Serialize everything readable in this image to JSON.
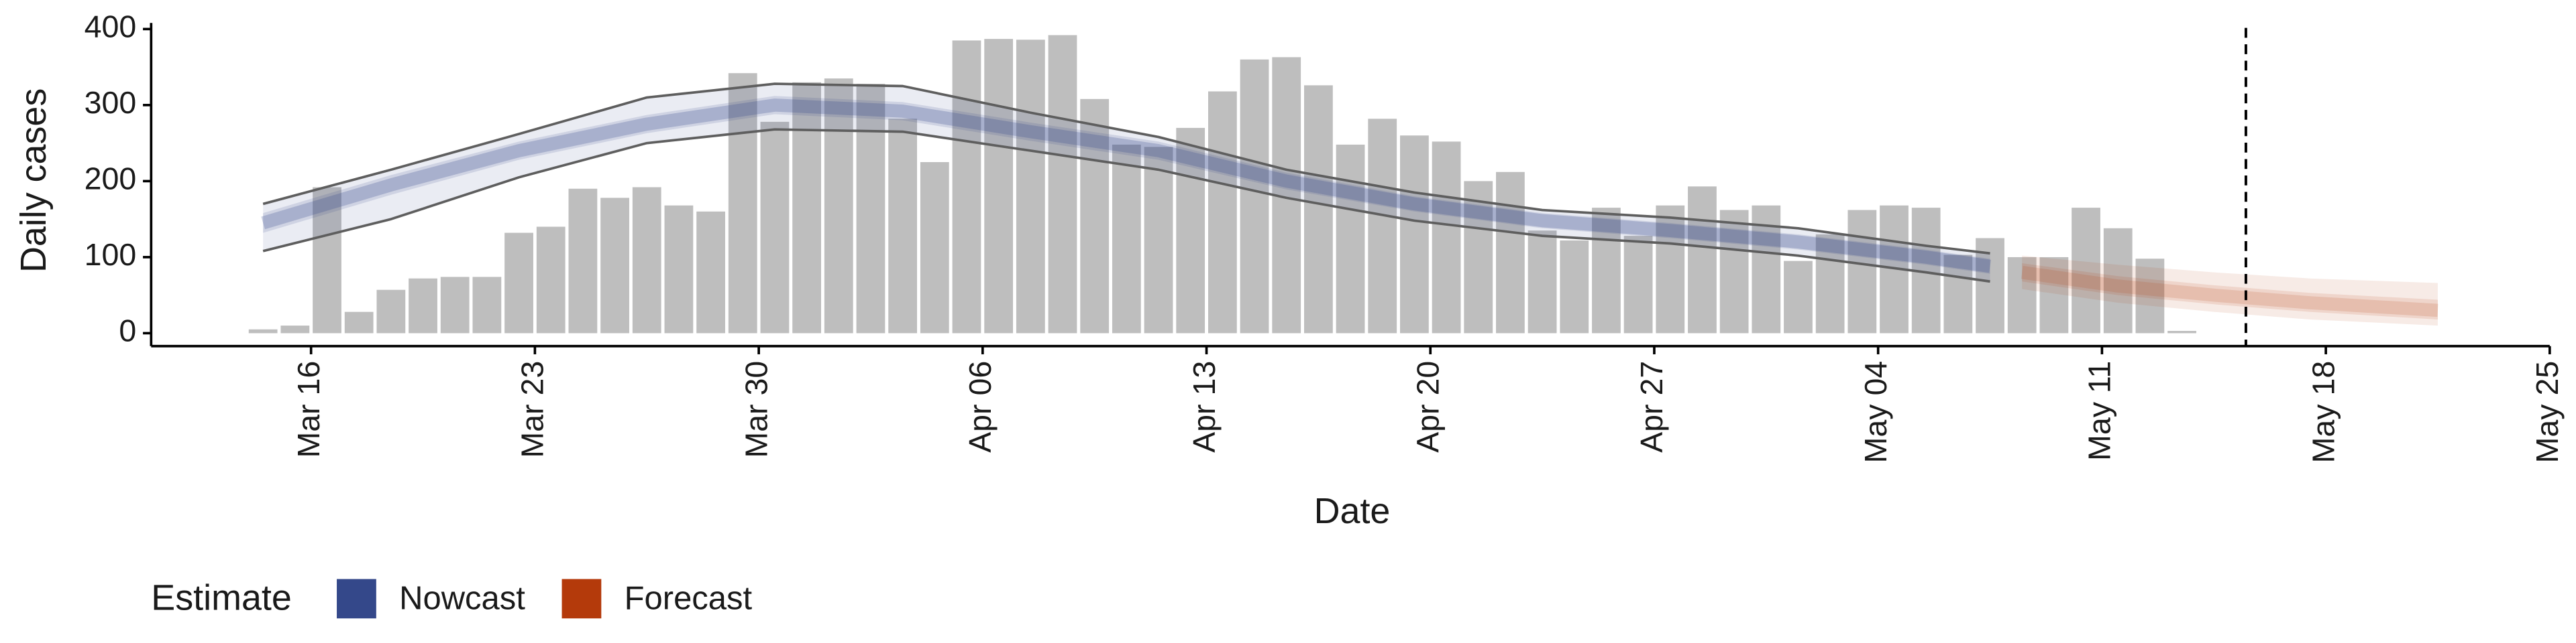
{
  "chart_data": {
    "type": "bar",
    "xlabel": "Date",
    "ylabel": "Daily cases",
    "xlim": [
      "Mar 11",
      "May 25"
    ],
    "xticks": [
      "Mar 16",
      "Mar 23",
      "Mar 30",
      "Apr 06",
      "Apr 13",
      "Apr 20",
      "Apr 27",
      "May 04",
      "May 11",
      "May 18",
      "May 25"
    ],
    "ylim": [
      -17,
      408
    ],
    "yticks": [
      0,
      100,
      200,
      300,
      400
    ],
    "color": "#bebebe",
    "categories": [
      "Mar 14",
      "Mar 15",
      "Mar 16",
      "Mar 17",
      "Mar 18",
      "Mar 19",
      "Mar 20",
      "Mar 21",
      "Mar 22",
      "Mar 23",
      "Mar 24",
      "Mar 25",
      "Mar 26",
      "Mar 27",
      "Mar 28",
      "Mar 29",
      "Mar 30",
      "Mar 31",
      "Apr 01",
      "Apr 02",
      "Apr 03",
      "Apr 04",
      "Apr 05",
      "Apr 06",
      "Apr 07",
      "Apr 08",
      "Apr 09",
      "Apr 10",
      "Apr 11",
      "Apr 12",
      "Apr 13",
      "Apr 14",
      "Apr 15",
      "Apr 16",
      "Apr 17",
      "Apr 18",
      "Apr 19",
      "Apr 20",
      "Apr 21",
      "Apr 22",
      "Apr 23",
      "Apr 24",
      "Apr 25",
      "Apr 26",
      "Apr 27",
      "Apr 28",
      "Apr 29",
      "Apr 30",
      "May 01",
      "May 02",
      "May 03",
      "May 04",
      "May 05",
      "May 06",
      "May 07",
      "May 08",
      "May 09",
      "May 10",
      "May 11",
      "May 12",
      "May 13"
    ],
    "values": [
      5,
      10,
      192,
      28,
      57,
      72,
      74,
      74,
      132,
      140,
      190,
      178,
      192,
      168,
      160,
      342,
      278,
      330,
      335,
      328,
      282,
      225,
      385,
      387,
      386,
      392,
      308,
      248,
      245,
      270,
      318,
      360,
      363,
      326,
      248,
      282,
      260,
      252,
      200,
      212,
      135,
      122,
      165,
      128,
      168,
      193,
      162,
      168,
      95,
      130,
      162,
      168,
      165,
      103,
      125,
      100,
      100,
      165,
      138,
      98,
      3
    ],
    "nowcast": {
      "name": "Nowcast",
      "color": "#34488a",
      "outline_color": "#5e5e5e",
      "x": [
        "Mar 14",
        "Mar 18",
        "Mar 22",
        "Mar 26",
        "Mar 30",
        "Apr 03",
        "Apr 07",
        "Apr 11",
        "Apr 15",
        "Apr 19",
        "Apr 23",
        "Apr 27",
        "May 01",
        "May 05",
        "May 07"
      ],
      "median": [
        145,
        195,
        240,
        275,
        300,
        292,
        265,
        240,
        200,
        170,
        148,
        135,
        120,
        100,
        88
      ],
      "lower_50": [
        132,
        182,
        228,
        263,
        288,
        280,
        253,
        228,
        189,
        160,
        138,
        125,
        110,
        90,
        78
      ],
      "upper_50": [
        158,
        208,
        252,
        287,
        312,
        304,
        277,
        252,
        211,
        180,
        158,
        145,
        130,
        110,
        98
      ],
      "lower_90": [
        108,
        150,
        205,
        250,
        268,
        265,
        240,
        215,
        178,
        148,
        128,
        118,
        102,
        80,
        68
      ],
      "upper_90": [
        170,
        215,
        262,
        310,
        328,
        325,
        290,
        258,
        215,
        185,
        162,
        152,
        138,
        115,
        105
      ]
    },
    "forecast": {
      "name": "Forecast",
      "color": "#b43a0b",
      "x": [
        "May 08",
        "May 11",
        "May 14",
        "May 17",
        "May 21"
      ],
      "median": [
        80,
        62,
        50,
        40,
        30
      ],
      "lower_50": [
        68,
        50,
        38,
        28,
        18
      ],
      "upper_50": [
        92,
        75,
        63,
        53,
        44
      ],
      "lower_90": [
        58,
        40,
        28,
        18,
        10
      ],
      "upper_90": [
        102,
        90,
        80,
        72,
        66
      ]
    },
    "vline": "May 15",
    "legend_title": "Estimate"
  }
}
